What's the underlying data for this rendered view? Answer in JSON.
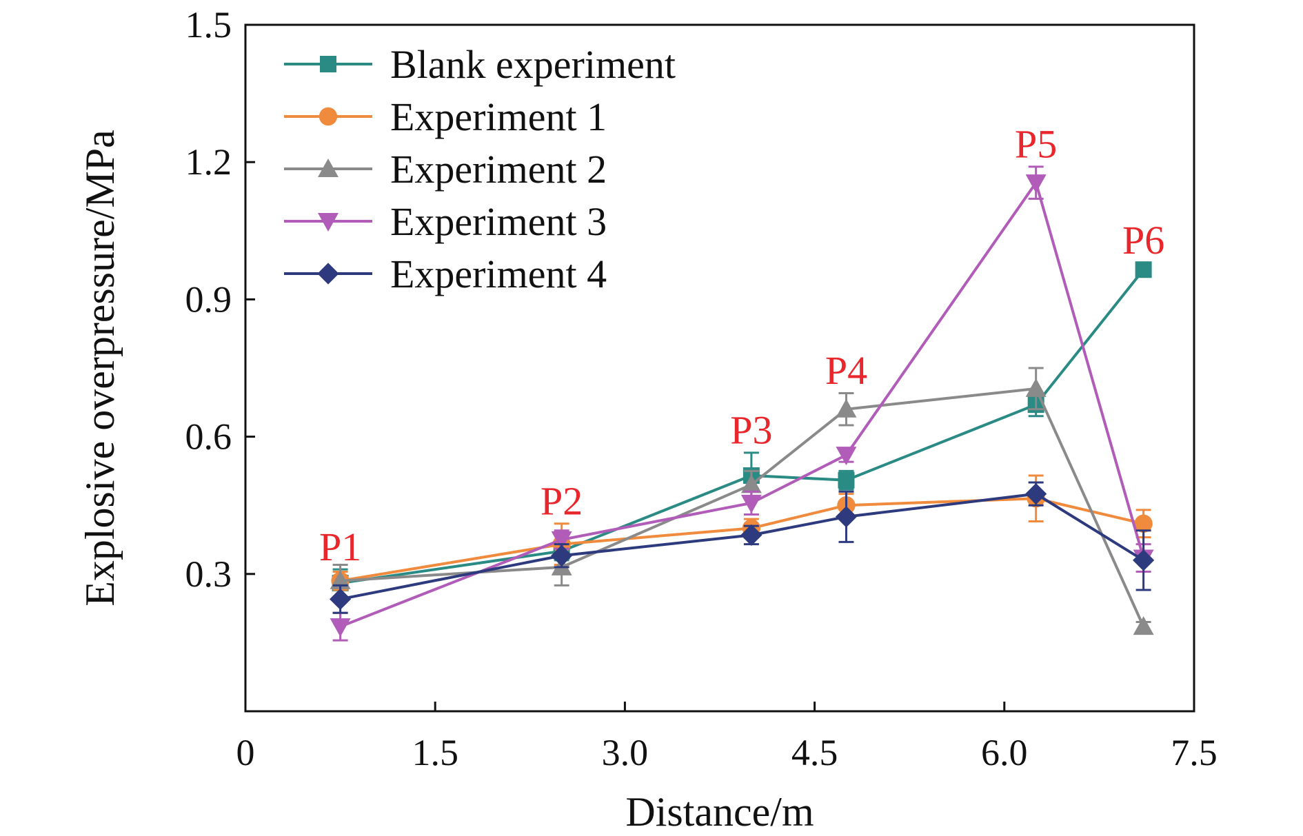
{
  "chart_data": {
    "type": "line",
    "xlabel": "Distance/m",
    "ylabel": "Explosive overpressure/MPa",
    "xlim": [
      0,
      7.5
    ],
    "ylim": [
      0,
      1.5
    ],
    "x_ticks": [
      "0",
      "1.5",
      "3.0",
      "4.5",
      "6.0",
      "7.5"
    ],
    "y_ticks": [
      "0.3",
      "0.6",
      "0.9",
      "1.2",
      "1.5"
    ],
    "x": [
      0.75,
      2.5,
      4.0,
      4.75,
      6.25,
      7.1
    ],
    "series": [
      {
        "name": "Blank experiment",
        "color": "#2a8a84",
        "marker": "square",
        "values": [
          0.28,
          0.35,
          0.515,
          0.505,
          0.67,
          0.965
        ],
        "errors": [
          0.03,
          0.02,
          0.05,
          0.02,
          0.025,
          0.015
        ]
      },
      {
        "name": "Experiment 1",
        "color": "#f08a3c",
        "marker": "circle",
        "values": [
          0.285,
          0.365,
          0.4,
          0.45,
          0.465,
          0.41
        ],
        "errors": [
          0.02,
          0.045,
          0.02,
          0.025,
          0.05,
          0.03
        ]
      },
      {
        "name": "Experiment 2",
        "color": "#8a8a8a",
        "marker": "triangle-up",
        "values": [
          0.285,
          0.315,
          0.495,
          0.66,
          0.705,
          0.185
        ],
        "errors": [
          0.035,
          0.04,
          0.03,
          0.035,
          0.045,
          0.01
        ]
      },
      {
        "name": "Experiment 3",
        "color": "#b05cb8",
        "marker": "triangle-down",
        "values": [
          0.185,
          0.375,
          0.455,
          0.56,
          1.155,
          0.335
        ],
        "errors": [
          0.03,
          0.02,
          0.025,
          0.015,
          0.035,
          0.03
        ]
      },
      {
        "name": "Experiment 4",
        "color": "#2e3a7e",
        "marker": "diamond",
        "values": [
          0.245,
          0.34,
          0.385,
          0.425,
          0.475,
          0.33
        ],
        "errors": [
          0.03,
          0.025,
          0.02,
          0.055,
          0.025,
          0.065
        ]
      }
    ],
    "annotations": [
      {
        "text": "P1",
        "x": 0.75,
        "y": 0.33
      },
      {
        "text": "P2",
        "x": 2.5,
        "y": 0.43
      },
      {
        "text": "P3",
        "x": 4.0,
        "y": 0.585
      },
      {
        "text": "P4",
        "x": 4.75,
        "y": 0.715
      },
      {
        "text": "P5",
        "x": 6.25,
        "y": 1.21
      },
      {
        "text": "P6",
        "x": 7.1,
        "y": 1.0
      }
    ],
    "annotation_color": "#e8262b",
    "legend_position": "top-left",
    "grid": false
  }
}
